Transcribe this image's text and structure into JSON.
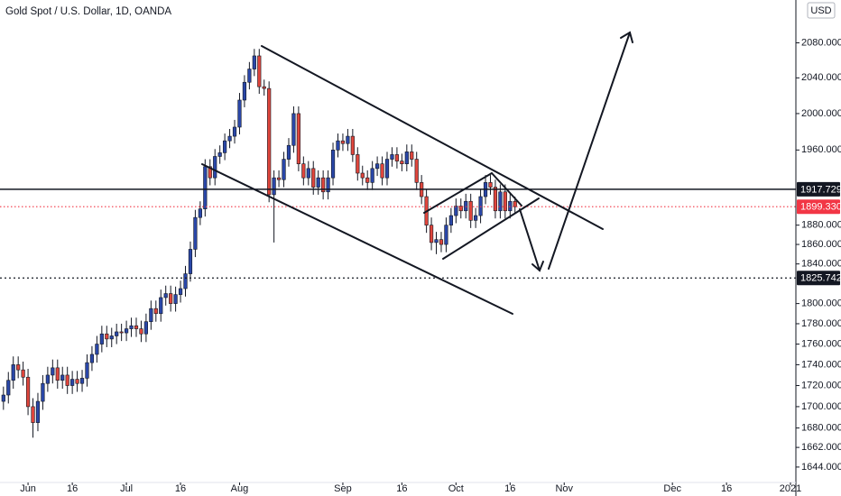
{
  "chart_data": {
    "type": "candlestick",
    "title": "Gold Spot / U.S. Dollar, 1D, OANDA",
    "currency": "USD",
    "up_color": "#2a47a8",
    "down_color": "#e0463c",
    "log_scale": true,
    "grid": false,
    "xlim": [
      -0.7,
      161.1
    ],
    "ylim": [
      1630,
      2130
    ],
    "xticks": [
      {
        "value": 5,
        "label": "Jun"
      },
      {
        "value": 14,
        "label": "16"
      },
      {
        "value": 25,
        "label": "Jul"
      },
      {
        "value": 36,
        "label": "16"
      },
      {
        "value": 48,
        "label": "Aug"
      },
      {
        "value": 69,
        "label": "Sep"
      },
      {
        "value": 81,
        "label": "16"
      },
      {
        "value": 92,
        "label": "Oct"
      },
      {
        "value": 103,
        "label": "16"
      },
      {
        "value": 114,
        "label": "Nov"
      },
      {
        "value": 136,
        "label": "Dec"
      },
      {
        "value": 147,
        "label": "16"
      },
      {
        "value": 160,
        "label": "2021"
      }
    ],
    "yticks": [
      {
        "value": 1644,
        "label": "1644.000"
      },
      {
        "value": 1662,
        "label": "1662.000"
      },
      {
        "value": 1680,
        "label": "1680.000"
      },
      {
        "value": 1700,
        "label": "1700.000"
      },
      {
        "value": 1720,
        "label": "1720.000"
      },
      {
        "value": 1740,
        "label": "1740.000"
      },
      {
        "value": 1760,
        "label": "1760.000"
      },
      {
        "value": 1780,
        "label": "1780.000"
      },
      {
        "value": 1800,
        "label": "1800.000"
      },
      {
        "value": 1840,
        "label": "1840.000"
      },
      {
        "value": 1860,
        "label": "1860.000"
      },
      {
        "value": 1880,
        "label": "1880.000"
      },
      {
        "value": 1960,
        "label": "1960.000"
      },
      {
        "value": 2000,
        "label": "2000.000"
      },
      {
        "value": 2040,
        "label": "2040.000"
      },
      {
        "value": 2080,
        "label": "2080.000"
      }
    ],
    "price_lines": [
      {
        "value": 1917.729,
        "label": "1917.729",
        "color": "#131722",
        "style": "solid"
      },
      {
        "value": 1899.33,
        "label": "1899.330",
        "color": "#f23645",
        "style": "dotted"
      },
      {
        "value": 1825.742,
        "label": "1825.742",
        "color": "#131722",
        "style": "dotted"
      }
    ],
    "open": [
      1705,
      1711,
      1725,
      1740,
      1735,
      1728,
      1700,
      1685,
      1705,
      1722,
      1730,
      1737,
      1725,
      1730,
      1720,
      1726,
      1722,
      1727,
      1742,
      1750,
      1760,
      1770,
      1765,
      1768,
      1772,
      1771,
      1775,
      1778,
      1775,
      1770,
      1782,
      1795,
      1790,
      1806,
      1810,
      1800,
      1809,
      1815,
      1830,
      1855,
      1888,
      1897,
      1942,
      1930,
      1953,
      1957,
      1970,
      1975,
      1985,
      2015,
      2035,
      2050,
      2065,
      2030,
      2028,
      1912,
      1930,
      1928,
      1950,
      1965,
      2000,
      1945,
      1930,
      1940,
      1920,
      1930,
      1915,
      1930,
      1960,
      1970,
      1967,
      1975,
      1955,
      1935,
      1930,
      1925,
      1940,
      1945,
      1930,
      1950,
      1955,
      1948,
      1945,
      1958,
      1950,
      1925,
      1910,
      1880,
      1862,
      1865,
      1860,
      1880,
      1890,
      1900,
      1895,
      1905,
      1885,
      1890,
      1910,
      1925,
      1920,
      1895,
      1915,
      1895,
      1905
    ],
    "high": [
      1719,
      1733,
      1748,
      1748,
      1743,
      1736,
      1708,
      1713,
      1730,
      1738,
      1745,
      1745,
      1738,
      1738,
      1734,
      1734,
      1735,
      1750,
      1758,
      1768,
      1778,
      1778,
      1776,
      1780,
      1780,
      1783,
      1786,
      1786,
      1783,
      1790,
      1803,
      1803,
      1814,
      1818,
      1818,
      1817,
      1823,
      1838,
      1863,
      1896,
      1905,
      1950,
      1950,
      1961,
      1965,
      1978,
      1983,
      1993,
      2023,
      2043,
      2058,
      2073,
      2073,
      2038,
      2036,
      1938,
      1938,
      1958,
      1973,
      2008,
      2008,
      1953,
      1948,
      1948,
      1938,
      1938,
      1938,
      1968,
      1978,
      1978,
      1983,
      1983,
      1963,
      1943,
      1938,
      1948,
      1953,
      1953,
      1958,
      1963,
      1963,
      1956,
      1966,
      1966,
      1958,
      1933,
      1918,
      1888,
      1873,
      1873,
      1888,
      1898,
      1908,
      1908,
      1913,
      1913,
      1898,
      1918,
      1933,
      1933,
      1928,
      1923,
      1923,
      1913,
      1910
    ],
    "low": [
      1697,
      1703,
      1717,
      1727,
      1720,
      1692,
      1671,
      1677,
      1697,
      1714,
      1722,
      1717,
      1717,
      1712,
      1712,
      1714,
      1714,
      1719,
      1734,
      1742,
      1752,
      1757,
      1757,
      1760,
      1763,
      1763,
      1767,
      1767,
      1762,
      1762,
      1774,
      1782,
      1782,
      1798,
      1792,
      1792,
      1801,
      1807,
      1822,
      1847,
      1880,
      1889,
      1922,
      1922,
      1945,
      1949,
      1962,
      1967,
      1977,
      2007,
      2027,
      2042,
      2022,
      2020,
      1904,
      1862,
      1920,
      1920,
      1942,
      1957,
      1937,
      1922,
      1922,
      1912,
      1912,
      1907,
      1907,
      1922,
      1952,
      1959,
      1959,
      1947,
      1927,
      1922,
      1917,
      1917,
      1932,
      1922,
      1922,
      1942,
      1940,
      1937,
      1937,
      1942,
      1917,
      1902,
      1872,
      1854,
      1850,
      1852,
      1852,
      1872,
      1882,
      1887,
      1887,
      1877,
      1877,
      1882,
      1902,
      1912,
      1887,
      1887,
      1887,
      1887,
      1893
    ],
    "close": [
      1711,
      1725,
      1740,
      1735,
      1728,
      1700,
      1685,
      1705,
      1722,
      1730,
      1737,
      1725,
      1730,
      1720,
      1726,
      1722,
      1727,
      1742,
      1750,
      1760,
      1770,
      1765,
      1768,
      1772,
      1771,
      1775,
      1778,
      1775,
      1770,
      1782,
      1795,
      1790,
      1806,
      1810,
      1800,
      1809,
      1815,
      1830,
      1855,
      1888,
      1897,
      1942,
      1930,
      1953,
      1957,
      1970,
      1975,
      1985,
      2015,
      2035,
      2050,
      2065,
      2030,
      2028,
      1912,
      1930,
      1928,
      1950,
      1965,
      2000,
      1945,
      1930,
      1940,
      1920,
      1930,
      1915,
      1930,
      1960,
      1970,
      1967,
      1975,
      1955,
      1935,
      1930,
      1925,
      1940,
      1945,
      1930,
      1950,
      1955,
      1948,
      1945,
      1958,
      1950,
      1925,
      1910,
      1880,
      1862,
      1865,
      1860,
      1880,
      1890,
      1900,
      1895,
      1905,
      1885,
      1890,
      1910,
      1925,
      1920,
      1895,
      1915,
      1895,
      1905,
      1899.33
    ]
  }
}
